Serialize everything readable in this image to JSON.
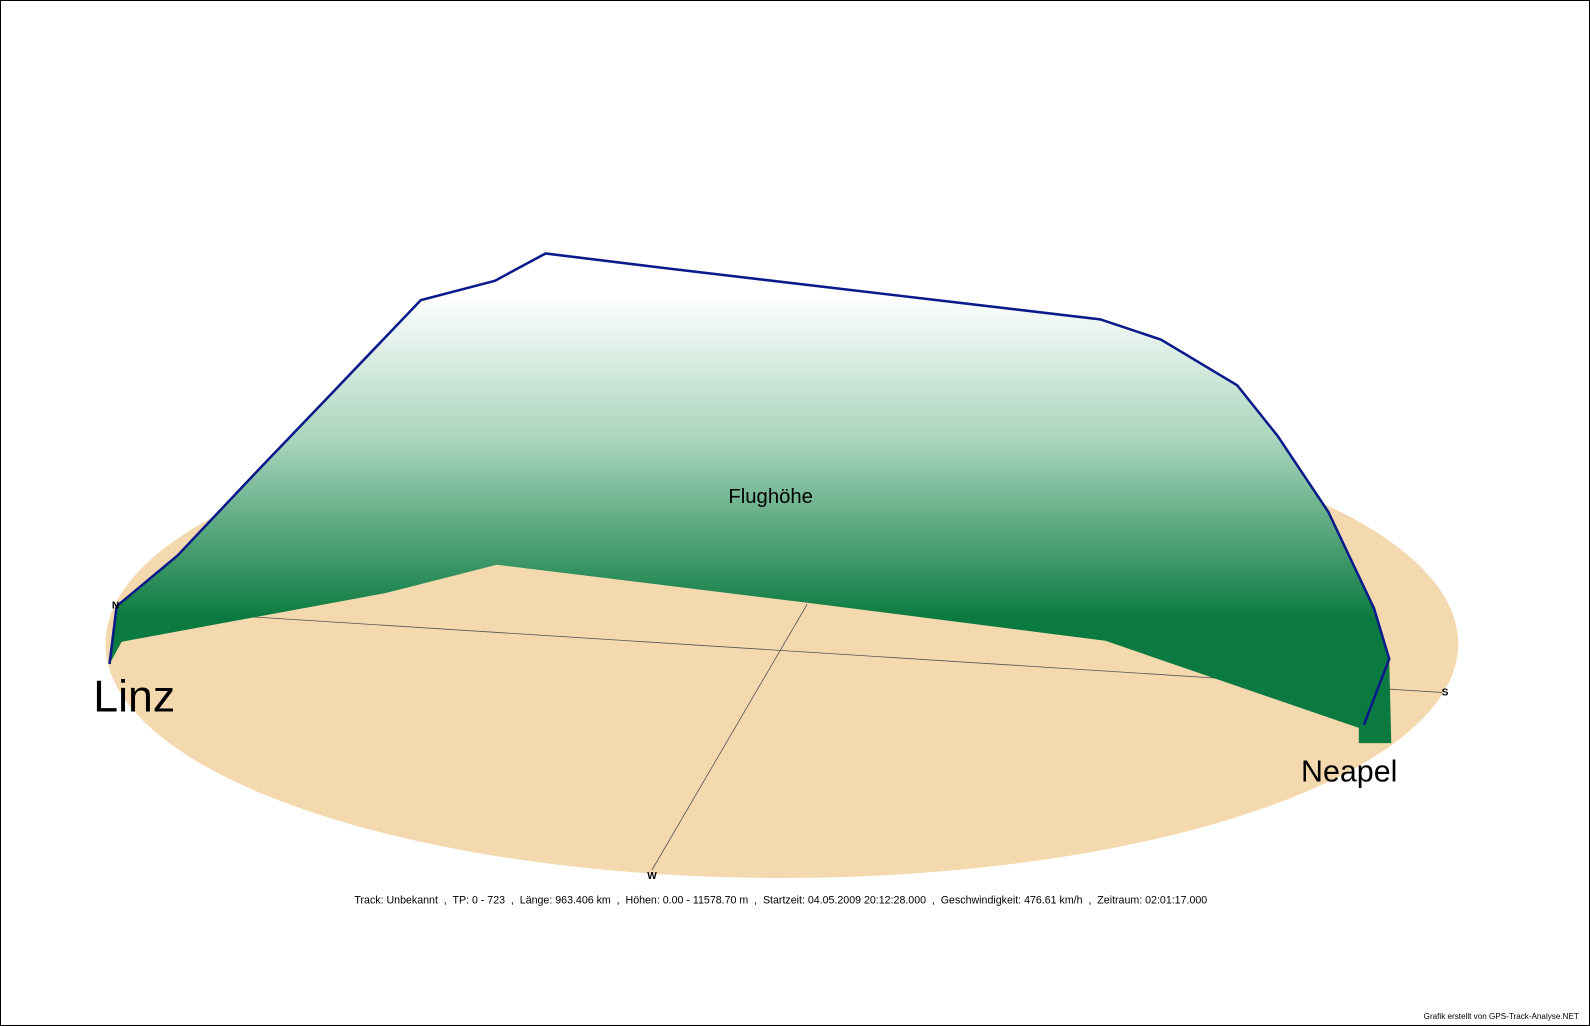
{
  "title": "Flughöhe",
  "compass": {
    "north": "N",
    "south": "S",
    "west": "W"
  },
  "places": {
    "start": "Linz",
    "end": "Neapel"
  },
  "info": "Track: Unbekannt  ,  TP: 0 - 723  ,  Länge: 963.406 km  ,  Höhen: 0.00 - 11578.70 m  ,  Startzeit: 04.05.2009 20:12:28.000  ,  Geschwindigkeit: 476.61 km/h  ,  Zeitraum: 02:01:17.000",
  "credit": "Grafik erstellt von GPS-Track-Analyse.NET"
}
